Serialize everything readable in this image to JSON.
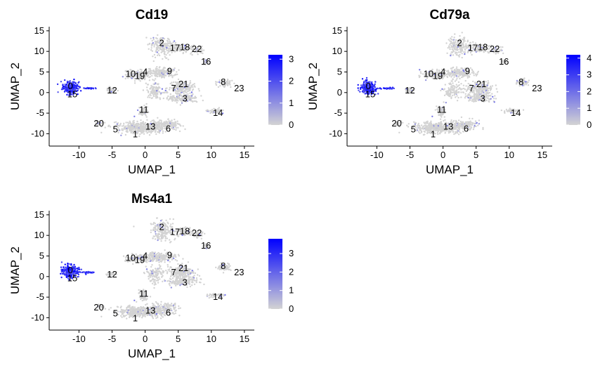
{
  "colors": {
    "low": "#d3d3d3",
    "high": "#0000ff",
    "axis": "#000000"
  },
  "chart_data": [
    {
      "type": "scatter",
      "title": "Cd19",
      "xlabel": "UMAP_1",
      "ylabel": "UMAP_2",
      "xlim": [
        -14.5,
        16.5
      ],
      "ylim": [
        -13,
        16
      ],
      "xticks": [
        -10,
        -5,
        0,
        5,
        10,
        15
      ],
      "yticks": [
        -10,
        -5,
        0,
        5,
        10,
        15
      ],
      "legend": {
        "position": "right",
        "min": 0,
        "max": 3.2,
        "ticks": [
          0,
          1,
          2,
          3
        ]
      },
      "clusters": [
        {
          "label": "0",
          "x": -11.3,
          "y": 1.5
        },
        {
          "label": "15",
          "x": -11.0,
          "y": -0.5
        },
        {
          "label": "12",
          "x": -5.0,
          "y": 0.5
        },
        {
          "label": "10",
          "x": -2.2,
          "y": 4.5
        },
        {
          "label": "19",
          "x": -0.8,
          "y": 4.0
        },
        {
          "label": "4",
          "x": 0.0,
          "y": 5.0
        },
        {
          "label": "9",
          "x": 3.7,
          "y": 5.2
        },
        {
          "label": "2",
          "x": 2.5,
          "y": 12.0
        },
        {
          "label": "17",
          "x": 4.5,
          "y": 10.8
        },
        {
          "label": "18",
          "x": 6.0,
          "y": 11.0
        },
        {
          "label": "22",
          "x": 7.8,
          "y": 10.5
        },
        {
          "label": "16",
          "x": 9.2,
          "y": 7.5
        },
        {
          "label": "8",
          "x": 11.8,
          "y": 2.5
        },
        {
          "label": "23",
          "x": 14.2,
          "y": 1.0
        },
        {
          "label": "7",
          "x": 4.3,
          "y": 1.0
        },
        {
          "label": "21",
          "x": 5.8,
          "y": 2.0
        },
        {
          "label": "3",
          "x": 6.0,
          "y": -1.5
        },
        {
          "label": "14",
          "x": 11.0,
          "y": -5.0
        },
        {
          "label": "11",
          "x": -0.2,
          "y": -4.2
        },
        {
          "label": "20",
          "x": -7.0,
          "y": -7.5
        },
        {
          "label": "5",
          "x": -4.5,
          "y": -9.0
        },
        {
          "label": "1",
          "x": -1.5,
          "y": -10.2
        },
        {
          "label": "13",
          "x": 0.8,
          "y": -8.3
        },
        {
          "label": "6",
          "x": 3.5,
          "y": -8.8
        }
      ]
    },
    {
      "type": "scatter",
      "title": "Cd79a",
      "xlabel": "UMAP_1",
      "ylabel": "UMAP_2",
      "xlim": [
        -14.5,
        16.5
      ],
      "ylim": [
        -13,
        16
      ],
      "xticks": [
        -10,
        -5,
        0,
        5,
        10,
        15
      ],
      "yticks": [
        -10,
        -5,
        0,
        5,
        10,
        15
      ],
      "legend": {
        "position": "right",
        "min": 0,
        "max": 4.2,
        "ticks": [
          0,
          1,
          2,
          3,
          4
        ]
      },
      "clusters": [
        {
          "label": "0",
          "x": -11.3,
          "y": 1.5
        },
        {
          "label": "15",
          "x": -11.0,
          "y": -0.5
        },
        {
          "label": "12",
          "x": -5.0,
          "y": 0.5
        },
        {
          "label": "10",
          "x": -2.2,
          "y": 4.5
        },
        {
          "label": "19",
          "x": -0.8,
          "y": 4.0
        },
        {
          "label": "4",
          "x": 0.0,
          "y": 5.0
        },
        {
          "label": "9",
          "x": 3.7,
          "y": 5.2
        },
        {
          "label": "2",
          "x": 2.5,
          "y": 12.0
        },
        {
          "label": "17",
          "x": 4.5,
          "y": 10.8
        },
        {
          "label": "18",
          "x": 6.0,
          "y": 11.0
        },
        {
          "label": "22",
          "x": 7.8,
          "y": 10.5
        },
        {
          "label": "16",
          "x": 9.2,
          "y": 7.5
        },
        {
          "label": "8",
          "x": 11.8,
          "y": 2.5
        },
        {
          "label": "23",
          "x": 14.2,
          "y": 1.0
        },
        {
          "label": "7",
          "x": 4.3,
          "y": 1.0
        },
        {
          "label": "21",
          "x": 5.8,
          "y": 2.0
        },
        {
          "label": "3",
          "x": 6.0,
          "y": -1.5
        },
        {
          "label": "14",
          "x": 11.0,
          "y": -5.0
        },
        {
          "label": "11",
          "x": -0.2,
          "y": -4.2
        },
        {
          "label": "20",
          "x": -7.0,
          "y": -7.5
        },
        {
          "label": "5",
          "x": -4.5,
          "y": -9.0
        },
        {
          "label": "1",
          "x": -1.5,
          "y": -10.2
        },
        {
          "label": "13",
          "x": 0.8,
          "y": -8.3
        },
        {
          "label": "6",
          "x": 3.5,
          "y": -8.8
        }
      ]
    },
    {
      "type": "scatter",
      "title": "Ms4a1",
      "xlabel": "UMAP_1",
      "ylabel": "UMAP_2",
      "xlim": [
        -14.5,
        16.5
      ],
      "ylim": [
        -13,
        16
      ],
      "xticks": [
        -10,
        -5,
        0,
        5,
        10,
        15
      ],
      "yticks": [
        -10,
        -5,
        0,
        5,
        10,
        15
      ],
      "legend": {
        "position": "right",
        "min": 0,
        "max": 3.8,
        "ticks": [
          0,
          1,
          2,
          3
        ]
      },
      "clusters": [
        {
          "label": "0",
          "x": -11.3,
          "y": 1.5
        },
        {
          "label": "15",
          "x": -11.0,
          "y": -0.5
        },
        {
          "label": "12",
          "x": -5.0,
          "y": 0.5
        },
        {
          "label": "10",
          "x": -2.2,
          "y": 4.5
        },
        {
          "label": "19",
          "x": -0.8,
          "y": 4.0
        },
        {
          "label": "4",
          "x": 0.0,
          "y": 5.0
        },
        {
          "label": "9",
          "x": 3.7,
          "y": 5.2
        },
        {
          "label": "2",
          "x": 2.5,
          "y": 12.0
        },
        {
          "label": "17",
          "x": 4.5,
          "y": 10.8
        },
        {
          "label": "18",
          "x": 6.0,
          "y": 11.0
        },
        {
          "label": "22",
          "x": 7.8,
          "y": 10.5
        },
        {
          "label": "16",
          "x": 9.2,
          "y": 7.5
        },
        {
          "label": "8",
          "x": 11.8,
          "y": 2.5
        },
        {
          "label": "23",
          "x": 14.2,
          "y": 1.0
        },
        {
          "label": "7",
          "x": 4.3,
          "y": 1.0
        },
        {
          "label": "21",
          "x": 5.8,
          "y": 2.0
        },
        {
          "label": "3",
          "x": 6.0,
          "y": -1.5
        },
        {
          "label": "14",
          "x": 11.0,
          "y": -5.0
        },
        {
          "label": "11",
          "x": -0.2,
          "y": -4.2
        },
        {
          "label": "20",
          "x": -7.0,
          "y": -7.5
        },
        {
          "label": "5",
          "x": -4.5,
          "y": -9.0
        },
        {
          "label": "1",
          "x": -1.5,
          "y": -10.2
        },
        {
          "label": "13",
          "x": 0.8,
          "y": -8.3
        },
        {
          "label": "6",
          "x": 3.5,
          "y": -8.8
        }
      ]
    }
  ]
}
